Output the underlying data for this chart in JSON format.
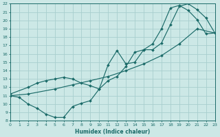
{
  "xlabel": "Humidex (Indice chaleur)",
  "xlim": [
    0,
    23
  ],
  "ylim": [
    8,
    22
  ],
  "xticks": [
    0,
    1,
    2,
    3,
    4,
    5,
    6,
    7,
    8,
    9,
    10,
    11,
    12,
    13,
    14,
    15,
    16,
    17,
    18,
    19,
    20,
    21,
    22,
    23
  ],
  "yticks": [
    8,
    9,
    10,
    11,
    12,
    13,
    14,
    15,
    16,
    17,
    18,
    19,
    20,
    21,
    22
  ],
  "bg_color": "#cce8e6",
  "grid_color": "#a8cece",
  "line_color": "#1a6a68",
  "line1_x": [
    0,
    1,
    2,
    3,
    4,
    5,
    6,
    7,
    8,
    9,
    10,
    11,
    12,
    13,
    14,
    15,
    16,
    17,
    18,
    19,
    20,
    21,
    22,
    23
  ],
  "line1_y": [
    11.0,
    10.8,
    10.0,
    9.5,
    8.8,
    8.4,
    8.4,
    9.7,
    10.1,
    10.4,
    11.8,
    12.8,
    13.3,
    14.5,
    16.2,
    16.5,
    17.2,
    19.0,
    21.5,
    21.8,
    21.2,
    20.1,
    18.4,
    18.5
  ],
  "line2_x": [
    0,
    2,
    3,
    4,
    5,
    6,
    7,
    8,
    9,
    10,
    11,
    12,
    13,
    14,
    15,
    16,
    17,
    18,
    19,
    20,
    21,
    22,
    23
  ],
  "line2_y": [
    11.2,
    12.0,
    12.5,
    12.8,
    13.0,
    13.2,
    13.0,
    12.5,
    12.2,
    11.8,
    14.7,
    16.4,
    14.8,
    15.0,
    16.5,
    16.5,
    17.3,
    19.5,
    21.7,
    22.0,
    21.3,
    20.3,
    18.5
  ],
  "line3_x": [
    0,
    2,
    5,
    7,
    9,
    11,
    13,
    15,
    17,
    19,
    21,
    23
  ],
  "line3_y": [
    11.0,
    11.2,
    11.8,
    12.3,
    12.8,
    13.3,
    14.0,
    14.8,
    15.8,
    17.2,
    19.0,
    18.5
  ]
}
